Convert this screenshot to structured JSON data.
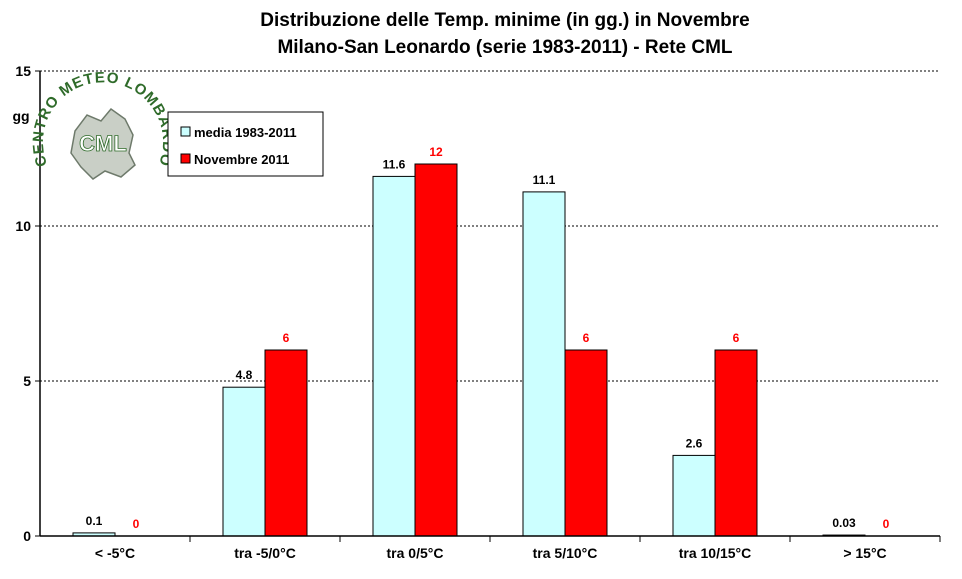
{
  "chart_data": {
    "type": "bar",
    "title": "Distribuzione  delle  Temp. minime  (in gg.) in Novembre",
    "subtitle": "Milano-San  Leonardo  (serie  1983-2011)  - Rete CML",
    "ylabel": "gg",
    "xlabel": "",
    "ylim": [
      0,
      15
    ],
    "yticks": [
      0,
      5,
      10,
      15
    ],
    "grid": true,
    "legend_position": "top-left",
    "categories": [
      "< -5°C",
      "tra -5/0°C",
      "tra 0/5°C",
      "tra 5/10°C",
      "tra 10/15°C",
      "> 15°C"
    ],
    "series": [
      {
        "name": "media 1983-2011",
        "color": "#ccffff",
        "values": [
          0.1,
          4.8,
          11.6,
          11.1,
          2.6,
          0.03
        ],
        "labels": [
          "0.1",
          "4.8",
          "11.6",
          "11.1",
          "2.6",
          "0.03"
        ],
        "label_color": "#000000"
      },
      {
        "name": "Novembre 2011",
        "color": "#ff0000",
        "values": [
          0,
          6,
          12,
          6,
          6,
          0
        ],
        "labels": [
          "0",
          "6",
          "12",
          "6",
          "6",
          "0"
        ],
        "label_color": "#ff0000"
      }
    ]
  },
  "logo": {
    "ring_text": "CENTRO METEO LOMBARDO",
    "center_text": "CML",
    "color": "#2f6b2a"
  }
}
